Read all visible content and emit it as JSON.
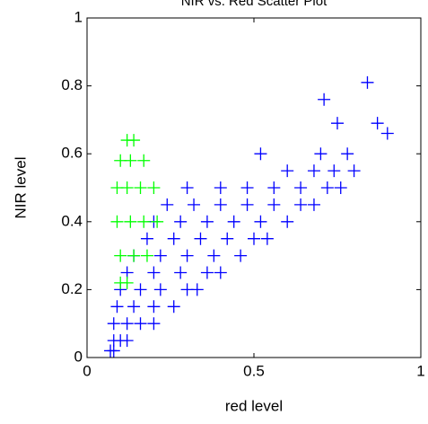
{
  "chart_data": {
    "type": "scatter",
    "title": "NIR vs. Red Scatter Plot",
    "x_label": "red level",
    "y_label": "NIR level",
    "xlim": [
      0,
      1
    ],
    "ylim": [
      0,
      1
    ],
    "xticks": [
      0,
      0.5,
      1
    ],
    "yticks": [
      0,
      0.2,
      0.4,
      0.6,
      0.8,
      1
    ],
    "marker": "+",
    "series": [
      {
        "color": "#0000ff",
        "x": [
          0.07,
          0.08,
          0.08,
          0.1,
          0.12,
          0.08,
          0.12,
          0.16,
          0.2,
          0.09,
          0.14,
          0.2,
          0.26,
          0.1,
          0.16,
          0.22,
          0.3,
          0.33,
          0.12,
          0.2,
          0.28,
          0.36,
          0.4,
          0.14,
          0.22,
          0.3,
          0.38,
          0.46,
          0.18,
          0.26,
          0.34,
          0.42,
          0.5,
          0.54,
          0.2,
          0.28,
          0.36,
          0.44,
          0.52,
          0.6,
          0.24,
          0.32,
          0.4,
          0.48,
          0.56,
          0.64,
          0.68,
          0.3,
          0.4,
          0.48,
          0.56,
          0.64,
          0.72,
          0.76,
          0.6,
          0.68,
          0.74,
          0.8,
          0.7,
          0.78,
          0.84,
          0.87,
          0.9,
          0.71,
          0.52,
          0.75
        ],
        "values": [
          0.02,
          0.02,
          0.05,
          0.05,
          0.05,
          0.1,
          0.1,
          0.1,
          0.1,
          0.15,
          0.15,
          0.15,
          0.15,
          0.2,
          0.2,
          0.2,
          0.2,
          0.2,
          0.25,
          0.25,
          0.25,
          0.25,
          0.25,
          0.3,
          0.3,
          0.3,
          0.3,
          0.3,
          0.35,
          0.35,
          0.35,
          0.35,
          0.35,
          0.35,
          0.4,
          0.4,
          0.4,
          0.4,
          0.4,
          0.4,
          0.45,
          0.45,
          0.45,
          0.45,
          0.45,
          0.45,
          0.45,
          0.5,
          0.5,
          0.5,
          0.5,
          0.5,
          0.5,
          0.5,
          0.55,
          0.55,
          0.55,
          0.55,
          0.6,
          0.6,
          0.81,
          0.69,
          0.66,
          0.76,
          0.6,
          0.69
        ]
      },
      {
        "color": "#00ff00",
        "x": [
          0.1,
          0.12,
          0.1,
          0.14,
          0.18,
          0.09,
          0.13,
          0.17,
          0.21,
          0.09,
          0.12,
          0.16,
          0.2,
          0.1,
          0.13,
          0.17,
          0.12,
          0.14
        ],
        "values": [
          0.22,
          0.22,
          0.3,
          0.3,
          0.3,
          0.4,
          0.4,
          0.4,
          0.4,
          0.5,
          0.5,
          0.5,
          0.5,
          0.58,
          0.58,
          0.58,
          0.64,
          0.64
        ]
      }
    ]
  }
}
